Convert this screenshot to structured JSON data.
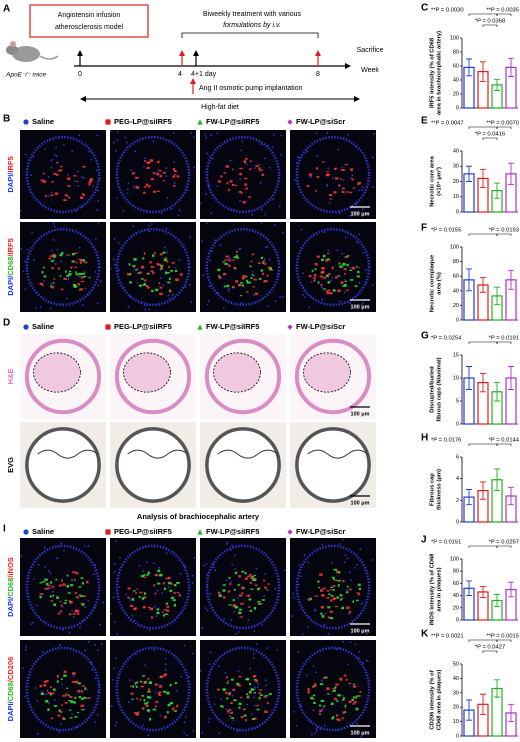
{
  "figure": {
    "panel_labels": [
      "A",
      "B",
      "C",
      "D",
      "E",
      "F",
      "G",
      "H",
      "I",
      "J",
      "K"
    ],
    "timeline": {
      "model_box": [
        "Angiotensin infusion",
        "atherosclerosis model"
      ],
      "treatment": [
        "Biweekly treatment with various",
        "formulations by i.v."
      ],
      "sacrifice": "Sacrifice",
      "week": "Week",
      "mice": "ApoE⁻/⁻ mice",
      "ticks": [
        "0",
        "4",
        "4+1 day",
        "8"
      ],
      "pump": "Ang II osmotic pump implantation",
      "diet": "High-fat diet"
    },
    "groups": [
      {
        "name": "Saline",
        "color": "#1f3fd6"
      },
      {
        "name": "PEG-LP@siIRF5",
        "color": "#e01b1b"
      },
      {
        "name": "FW-LP@siIRF5",
        "color": "#1fb11f"
      },
      {
        "name": "FW-LP@siScr",
        "color": "#b030d0"
      }
    ],
    "stain_rows": [
      [
        "DAPI/",
        "IRF5"
      ],
      [
        "DAPI/",
        "CD68",
        "/IRF5"
      ],
      [
        "H&E"
      ],
      [
        "EVG"
      ],
      [
        "DAPI/",
        "CD68",
        "/iNOS"
      ],
      [
        "DAPI/",
        "CD68",
        "/CD206"
      ]
    ],
    "scale_bar": "100 μm",
    "section_title": "Analysis of brachiocephalic artery"
  },
  "chart_data": [
    {
      "type": "bar",
      "ylabel": [
        "IRF5 intensity (% of CD68",
        "area in brachiocephalic artery)"
      ],
      "ylim": [
        0,
        100
      ],
      "yticks": [
        0,
        20,
        40,
        60,
        80,
        100
      ],
      "values": [
        58,
        52,
        33,
        58
      ],
      "errors": [
        12,
        14,
        8,
        13
      ],
      "annotations": [
        "**P = 0.0030",
        "**P = 0.0035",
        "*P = 0.0368"
      ]
    },
    {
      "type": "bar",
      "ylabel": [
        "Necrotic core area",
        "(×10⁴ μm²)"
      ],
      "ylim": [
        0,
        40
      ],
      "yticks": [
        0,
        10,
        20,
        30,
        40
      ],
      "values": [
        25,
        22,
        14,
        25
      ],
      "errors": [
        5,
        6,
        5,
        7
      ],
      "annotations": [
        "**P = 0.0047",
        "**P = 0.0070",
        "*P = 0.0416"
      ]
    },
    {
      "type": "bar",
      "ylabel": [
        "Necrotic core/plaque",
        "area (%)"
      ],
      "ylim": [
        0,
        100
      ],
      "yticks": [
        0,
        20,
        40,
        60,
        80,
        100
      ],
      "values": [
        55,
        48,
        33,
        55
      ],
      "errors": [
        15,
        10,
        12,
        13
      ],
      "annotations": [
        "*P = 0.0155",
        "*P = 0.0193"
      ]
    },
    {
      "type": "bar",
      "ylabel": [
        "Disrupted/buried",
        "fibrous caps (N/animal)"
      ],
      "ylim": [
        0,
        15
      ],
      "yticks": [
        0,
        5,
        10,
        15
      ],
      "values": [
        10,
        9,
        7,
        10
      ],
      "errors": [
        2.5,
        2,
        2,
        2.5
      ],
      "annotations": [
        "*P = 0.0254",
        "*P = 0.0191"
      ]
    },
    {
      "type": "bar",
      "ylabel": [
        "Fibrous cap",
        "thickness (μm)"
      ],
      "ylim": [
        0,
        6
      ],
      "yticks": [
        0,
        2,
        4,
        6
      ],
      "values": [
        2.3,
        2.9,
        3.9,
        2.4
      ],
      "errors": [
        0.7,
        0.8,
        1,
        0.8
      ],
      "annotations": [
        "*P = 0.0176",
        "*P = 0.0144"
      ]
    },
    {
      "type": "bar",
      "ylabel": [
        "iNOS intensity (% of CD68",
        "area in plaques)"
      ],
      "ylim": [
        0,
        100
      ],
      "yticks": [
        0,
        20,
        40,
        60,
        80,
        100
      ],
      "values": [
        52,
        46,
        32,
        50
      ],
      "errors": [
        12,
        9,
        10,
        12
      ],
      "annotations": [
        "*P = 0.0151",
        "*P = 0.0257"
      ]
    },
    {
      "type": "bar",
      "ylabel": [
        "CD206 intensity (% of",
        "CD68 area in plaques)"
      ],
      "ylim": [
        0,
        50
      ],
      "yticks": [
        0,
        10,
        20,
        30,
        40,
        50
      ],
      "values": [
        18,
        22,
        33,
        16
      ],
      "errors": [
        7,
        7,
        6,
        6
      ],
      "annotations": [
        "**P = 0.0021",
        "**P = 0.0015",
        "*P = 0.0427"
      ]
    }
  ]
}
